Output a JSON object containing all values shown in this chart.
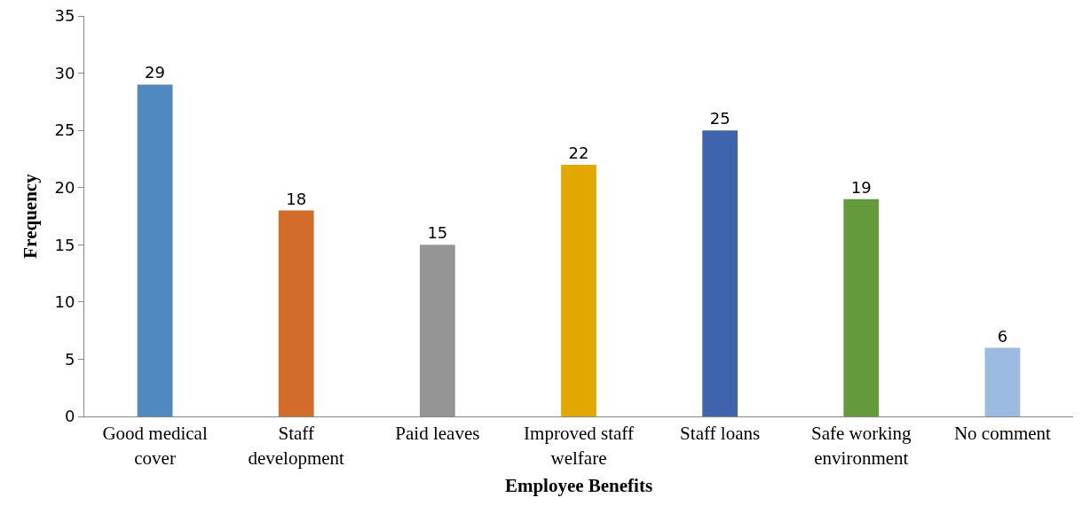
{
  "chart_data": {
    "type": "bar",
    "xlabel": "Employee Benefits",
    "ylabel": "Frequency",
    "categories": [
      "Good medical cover",
      "Staff development",
      "Paid leaves",
      "Improved staff welfare",
      "Staff loans",
      "Safe working environment",
      "No comment"
    ],
    "values": [
      29,
      18,
      15,
      22,
      25,
      19,
      6
    ],
    "colors": [
      "#4f89c0",
      "#d36b2b",
      "#959595",
      "#e2a800",
      "#3e64ae",
      "#639a3c",
      "#9cbbe0"
    ],
    "ylim": [
      0,
      35
    ],
    "yticks": [
      0,
      5,
      10,
      15,
      20,
      25,
      30,
      35
    ],
    "grid": false,
    "data_labels": true
  }
}
